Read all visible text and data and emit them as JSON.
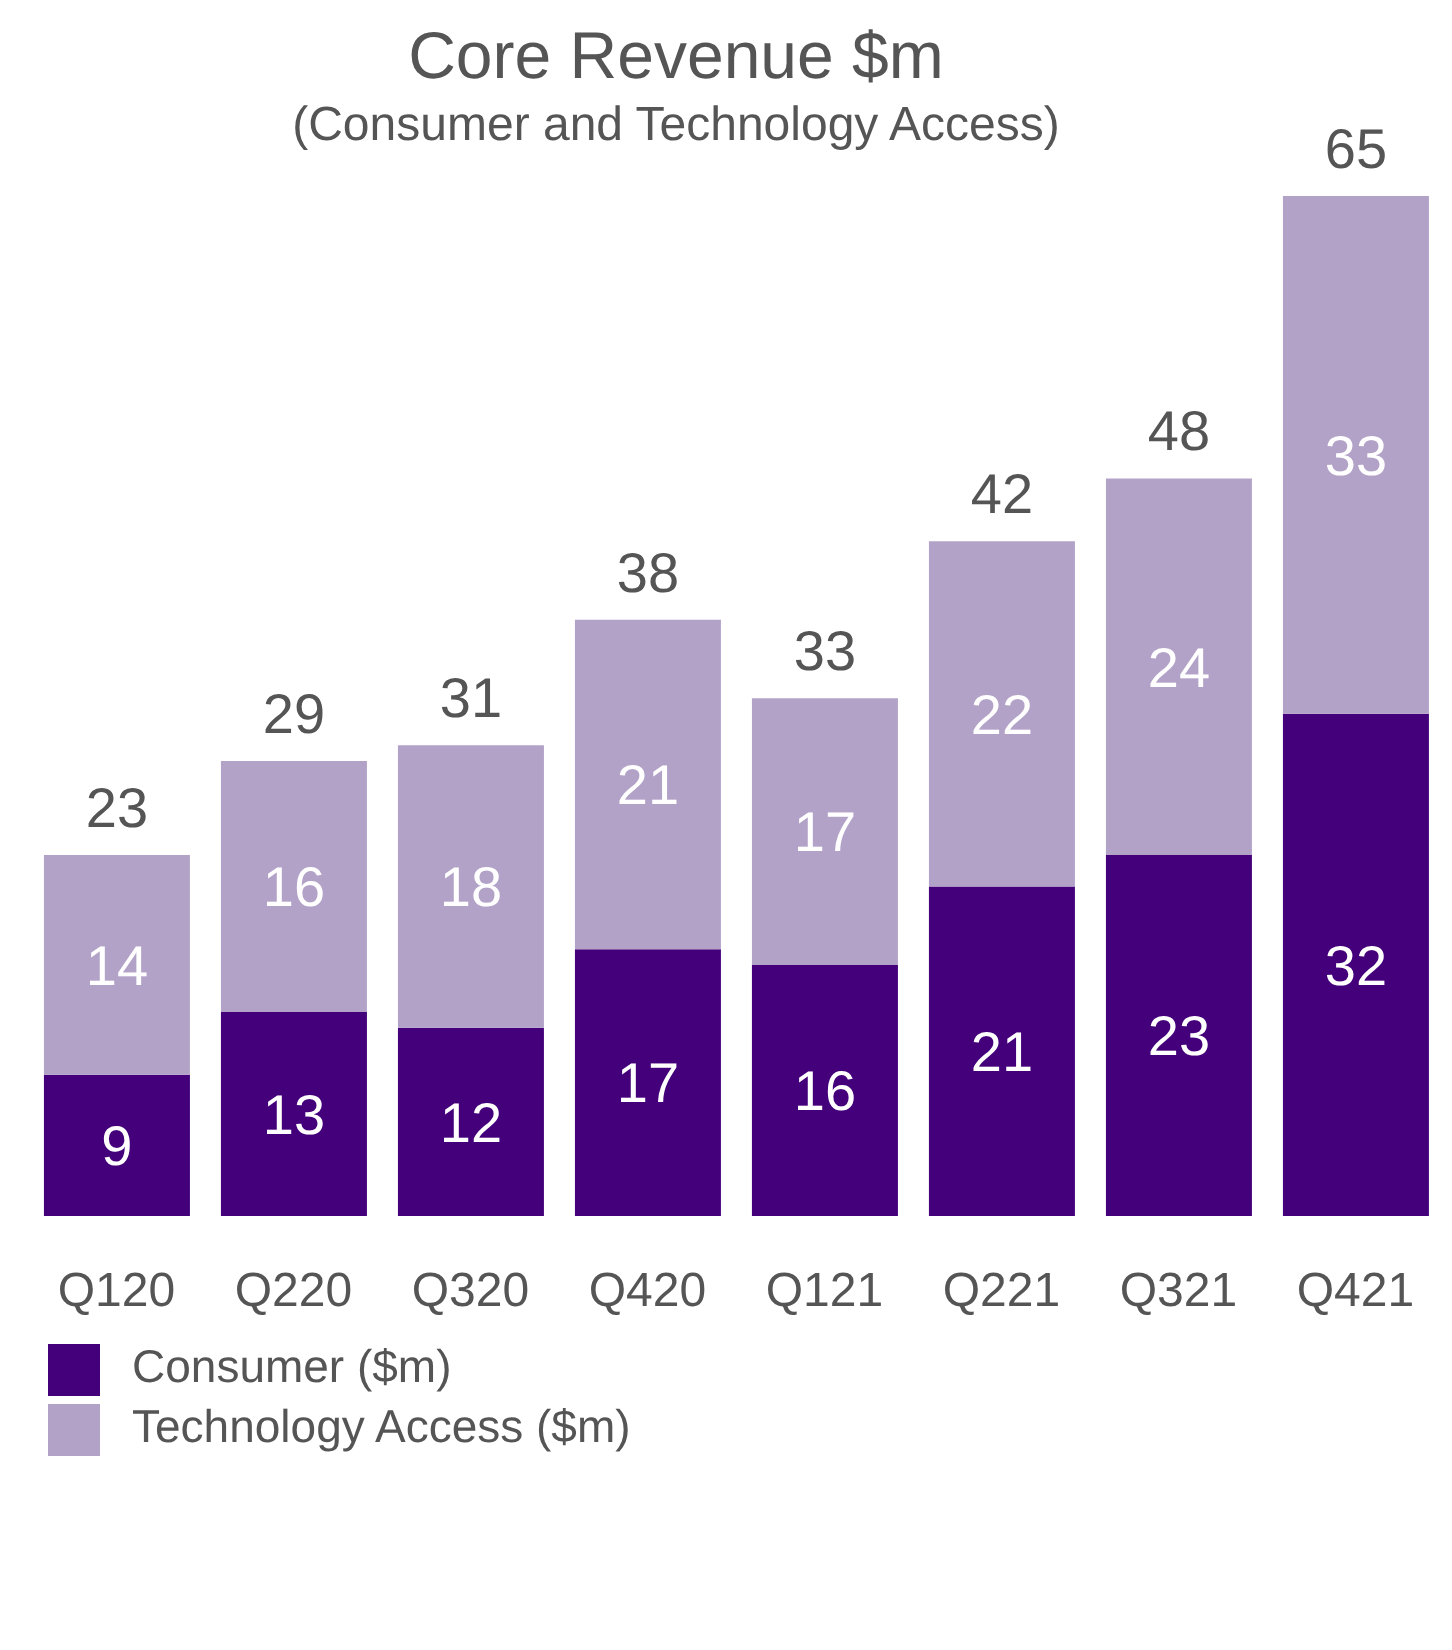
{
  "chart_data": {
    "type": "bar",
    "title": "Core Revenue $m",
    "subtitle": "(Consumer and Technology Access)",
    "categories": [
      "Q120",
      "Q220",
      "Q320",
      "Q420",
      "Q121",
      "Q221",
      "Q321",
      "Q421"
    ],
    "stacked": true,
    "data_labels": true,
    "legend": "bottom left",
    "grid": false,
    "series": [
      {
        "name": "Consumer ($m)",
        "color": "#44007a",
        "values": [
          9,
          13,
          12,
          17,
          16,
          21,
          23,
          32
        ]
      },
      {
        "name": "Technology Access ($m)",
        "color": "#b3a2c8",
        "values": [
          14,
          16,
          18,
          21,
          17,
          22,
          24,
          33
        ]
      }
    ],
    "totals": [
      "23",
      "29",
      "31",
      "38",
      "33",
      "42",
      "48",
      "65"
    ]
  }
}
